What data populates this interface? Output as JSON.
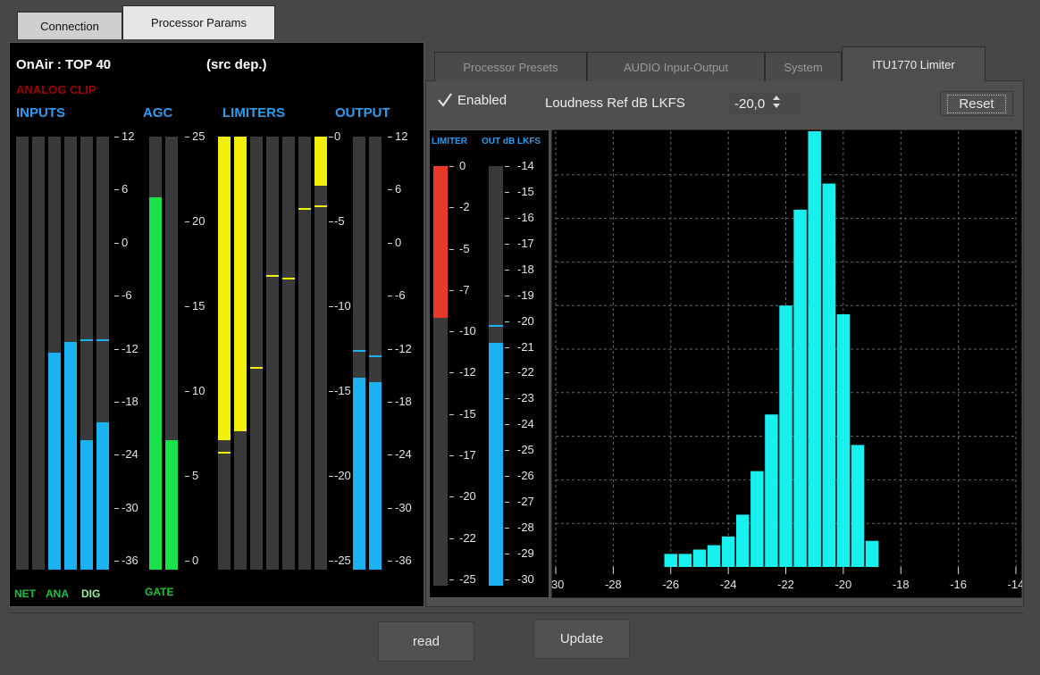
{
  "outer_tabs": [
    "Connection",
    "Processor Params"
  ],
  "meters": {
    "station": "OnAir : TOP 40",
    "src": "(src dep.)",
    "analog_clip": "ANALOG CLIP",
    "headers": {
      "inputs": "INPUTS",
      "agc": "AGC",
      "limiters": "LIMITERS",
      "output": "OUTPUT"
    },
    "footer": {
      "net": "NET",
      "ana": "ANA",
      "dig": "DIG",
      "gate": "GATE"
    },
    "inputs_scale": [
      "12",
      "6",
      "0",
      "-6",
      "-12",
      "-18",
      "-24",
      "-30",
      "-36"
    ],
    "agc_scale": [
      "25",
      "20",
      "15",
      "10",
      "5",
      "0"
    ],
    "limiters_scale": [
      "0",
      "-5",
      "-10",
      "-15",
      "-20",
      "-25"
    ],
    "output_scale": [
      "12",
      "6",
      "0",
      "-6",
      "-12",
      "-18",
      "-24",
      "-30",
      "-36"
    ],
    "colors": {
      "inputs": "#1ab2ef",
      "agc": "#19e34a",
      "limiters": "#f0f00a",
      "output": "#1ab2ef",
      "clip": "#a00000",
      "footer": "#19c43a"
    }
  },
  "inner_tabs": [
    "Processor Presets",
    "AUDIO Input-Output",
    "System",
    "ITU1770 Limiter"
  ],
  "itu": {
    "enabled_label": "Enabled",
    "enabled_checked": true,
    "loudness_label": "Loudness Ref dB LKFS",
    "loudness_value": "-20,0",
    "reset_label": "Reset",
    "limiter_label": "LIMITER",
    "out_label": "OUT dB LKFS",
    "limiter_scale": [
      "0",
      "-2",
      "-5",
      "-7",
      "-10",
      "-12",
      "-15",
      "-17",
      "-20",
      "-22",
      "-25"
    ],
    "out_scale": [
      "-14",
      "-15",
      "-16",
      "-17",
      "-18",
      "-19",
      "-20",
      "-21",
      "-22",
      "-23",
      "-24",
      "-25",
      "-26",
      "-27",
      "-28",
      "-29",
      "-30"
    ],
    "limiter_color": "#e8372b",
    "out_color": "#1ab2ef",
    "hist_color": "#18f0f0"
  },
  "chart_data": {
    "type": "bar",
    "xlabel": "",
    "ylabel": "",
    "xlim": [
      -30,
      -14
    ],
    "x_ticks": [
      "-30",
      "-28",
      "-26",
      "-24",
      "-22",
      "-20",
      "-18",
      "-16",
      "-14"
    ],
    "grid": true,
    "x": [
      -26,
      -25.5,
      -25,
      -24.5,
      -24,
      -23.5,
      -23,
      -22.5,
      -22,
      -21.5,
      -21,
      -20.5,
      -20,
      -19.5,
      -19
    ],
    "values": [
      3,
      3,
      4,
      5,
      7,
      12,
      22,
      35,
      60,
      82,
      100,
      88,
      58,
      28,
      6
    ]
  },
  "buttons": {
    "read": "read",
    "update": "Update"
  }
}
